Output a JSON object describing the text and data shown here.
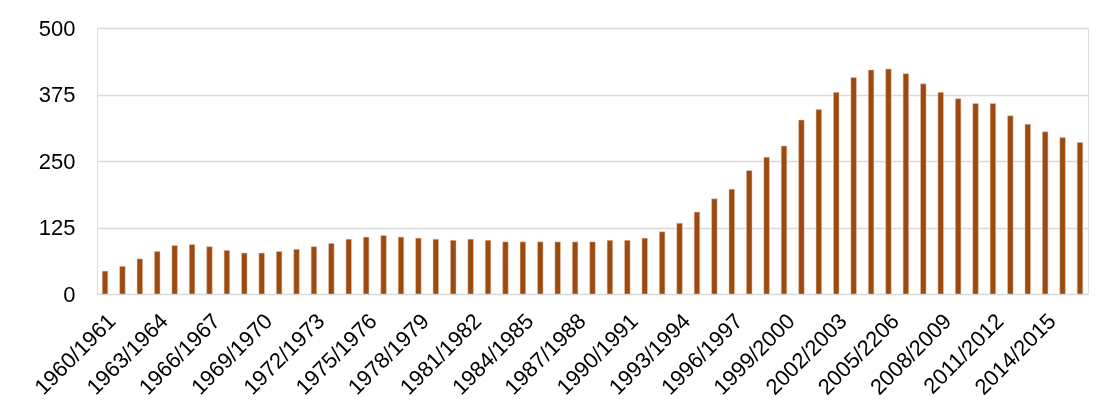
{
  "chart_data": {
    "type": "bar",
    "categories": [
      "1960/1961",
      null,
      null,
      "1963/1964",
      null,
      null,
      "1966/1967",
      null,
      null,
      "1969/1970",
      null,
      null,
      "1972/1973",
      null,
      null,
      "1975/1976",
      null,
      null,
      "1978/1979",
      null,
      null,
      "1981/1982",
      null,
      null,
      "1984/1985",
      null,
      null,
      "1987/1988",
      null,
      null,
      "1990/1991",
      null,
      null,
      "1993/1994",
      null,
      null,
      "1996/1997",
      null,
      null,
      "1999/2000",
      null,
      null,
      "2002/2003",
      null,
      null,
      "2005/2206",
      null,
      null,
      "2008/2009",
      null,
      null,
      "2011/2012",
      null,
      null,
      "2014/2015",
      null,
      null
    ],
    "values": [
      43,
      52,
      66,
      80,
      91,
      93,
      89,
      82,
      77,
      77,
      80,
      84,
      89,
      95,
      103,
      107,
      110,
      107,
      105,
      103,
      101,
      103,
      101,
      98,
      98,
      98,
      98,
      98,
      98,
      101,
      101,
      105,
      117,
      133,
      154,
      179,
      197,
      232,
      257,
      278,
      327,
      347,
      379,
      407,
      421,
      423,
      414,
      395,
      379,
      367,
      358,
      358,
      335,
      319,
      305,
      294,
      285
    ],
    "color": "#9c4a10",
    "ylim": [
      0,
      500
    ],
    "yticks": [
      0,
      125,
      250,
      375,
      500
    ],
    "grid": "y"
  }
}
